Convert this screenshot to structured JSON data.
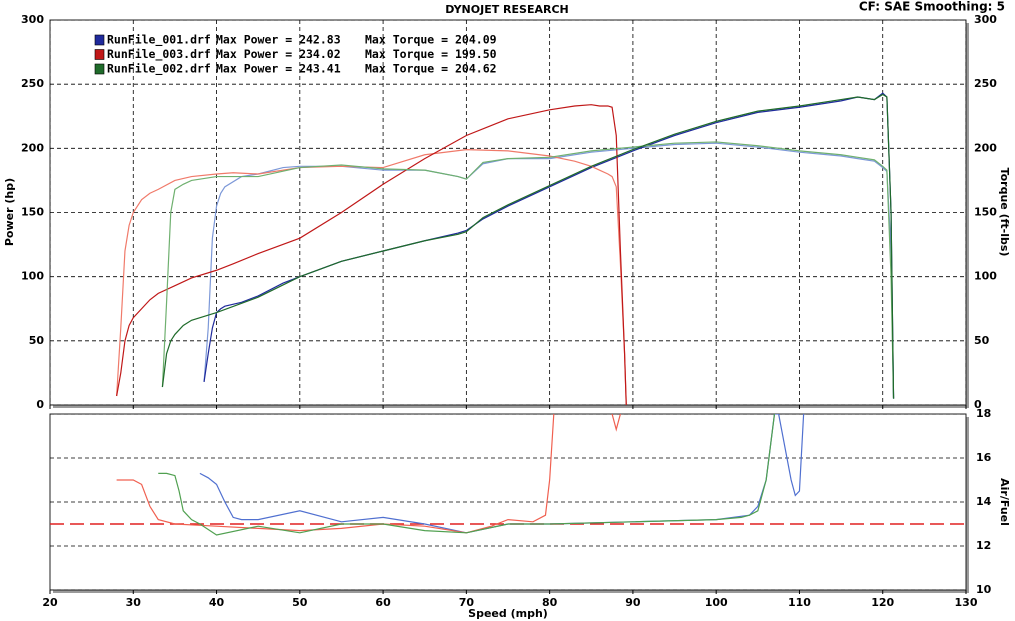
{
  "chart_data": [
    {
      "type": "line",
      "title": "DYNOJET RESEARCH",
      "subtitle": "CF: SAE  Smoothing: 5",
      "ylabel": "Power (hp)",
      "y2label": "Torque (ft-lbs)",
      "xlim": [
        20,
        130
      ],
      "xticks": [
        20,
        30,
        40,
        50,
        60,
        70,
        80,
        90,
        100,
        110,
        120,
        130
      ],
      "ylim": [
        0,
        300
      ],
      "yticks": [
        0,
        50,
        100,
        150,
        200,
        250,
        300
      ],
      "y2lim": [
        0,
        300
      ],
      "y2ticks": [
        0,
        50,
        100,
        150,
        200,
        250,
        300
      ],
      "grid": true,
      "xgrid": true,
      "series": [
        {
          "name": "RunFile_001.drf",
          "max_power": "Max Power = 242.83",
          "max_torque": "Max Torque = 204.09",
          "color": "#1f2a9c",
          "torque_color": "#7c98d8",
          "x": [
            38.5,
            39,
            39.5,
            40,
            40.5,
            41,
            43,
            45,
            48,
            50,
            55,
            60,
            65,
            69,
            70,
            72,
            75,
            80,
            85,
            90,
            95,
            100,
            105,
            110,
            115,
            117,
            119,
            120,
            120.5,
            121,
            121.3
          ],
          "values": [
            18,
            40,
            60,
            72,
            75,
            77,
            80,
            85,
            95,
            100,
            112,
            120,
            128,
            134,
            136,
            145,
            155,
            170,
            185,
            198,
            210,
            220,
            228,
            232,
            237,
            240,
            238,
            243,
            240,
            150,
            5
          ],
          "torque": [
            18,
            60,
            130,
            155,
            165,
            170,
            178,
            180,
            185,
            186,
            186,
            183,
            183,
            178,
            176,
            188,
            192,
            192,
            197,
            200,
            203,
            204,
            201,
            197,
            194,
            192,
            190,
            185,
            182,
            120,
            5
          ]
        },
        {
          "name": "RunFile_003.drf",
          "max_power": "Max Power = 234.02",
          "max_torque": "Max Torque = 199.50",
          "color": "#c01818",
          "torque_color": "#f07a6a",
          "x": [
            28,
            28.5,
            29,
            29.5,
            30,
            31,
            32,
            33,
            35,
            37,
            40,
            42,
            45,
            50,
            55,
            60,
            65,
            70,
            75,
            80,
            83,
            85,
            86,
            87,
            87.5,
            88,
            88.5,
            89,
            89.2
          ],
          "values": [
            7,
            25,
            50,
            62,
            68,
            75,
            82,
            87,
            93,
            99,
            105,
            110,
            118,
            130,
            150,
            172,
            192,
            210,
            223,
            230,
            233,
            234,
            233,
            233,
            232,
            210,
            120,
            40,
            0
          ],
          "torque": [
            7,
            60,
            120,
            140,
            150,
            160,
            165,
            168,
            175,
            178,
            180,
            181,
            180,
            185,
            186,
            185,
            195,
            199,
            198,
            194,
            190,
            186,
            183,
            180,
            178,
            170,
            110,
            40,
            0
          ]
        },
        {
          "name": "RunFile_002.drf",
          "max_power": "Max Power = 243.41",
          "max_torque": "Max Torque = 204.62",
          "color": "#1f6b2a",
          "torque_color": "#6fb06f",
          "x": [
            33.5,
            34,
            34.5,
            35,
            36,
            37,
            40,
            45,
            50,
            55,
            60,
            65,
            69,
            70,
            72,
            75,
            80,
            85,
            90,
            95,
            100,
            105,
            110,
            115,
            117,
            119,
            120,
            120.5,
            121,
            121.3
          ],
          "values": [
            14,
            40,
            50,
            55,
            62,
            66,
            72,
            84,
            100,
            112,
            120,
            128,
            133,
            135,
            146,
            156,
            171,
            186,
            199,
            211,
            221,
            229,
            233,
            238,
            240,
            238,
            242,
            240,
            150,
            5
          ],
          "torque": [
            14,
            80,
            150,
            168,
            172,
            175,
            178,
            178,
            185,
            187,
            184,
            183,
            178,
            176,
            189,
            192,
            193,
            198,
            201,
            204,
            205,
            202,
            198,
            195,
            193,
            191,
            186,
            183,
            100,
            5
          ]
        }
      ]
    },
    {
      "type": "line",
      "xlabel": "Speed (mph)",
      "y2label": "Air/Fuel",
      "xlim": [
        20,
        130
      ],
      "xticks": [
        20,
        30,
        40,
        50,
        60,
        70,
        80,
        90,
        100,
        110,
        120,
        130
      ],
      "ylim": [
        10,
        18
      ],
      "yticks": [
        10,
        12,
        14,
        16,
        18
      ],
      "grid": true,
      "xgrid": false,
      "reference_line": {
        "value": 13,
        "color": "#e02020"
      },
      "series": [
        {
          "color": "#5070d0",
          "x": [
            38,
            39,
            40,
            41,
            42,
            43,
            45,
            50,
            55,
            60,
            65,
            70,
            75,
            80,
            90,
            100,
            104,
            105,
            106,
            107,
            107.5,
            108,
            108.5,
            109,
            109.5,
            110,
            110.5
          ],
          "values": [
            15.3,
            15.1,
            14.8,
            14,
            13.3,
            13.2,
            13.2,
            13.6,
            13.1,
            13.3,
            13,
            12.6,
            13,
            13,
            13.1,
            13.2,
            13.4,
            13.8,
            15,
            18,
            18,
            17,
            16,
            15,
            14.3,
            14.5,
            18
          ]
        },
        {
          "color": "#f06050",
          "x": [
            28,
            30,
            31,
            32,
            33,
            35,
            40,
            45,
            50,
            55,
            60,
            65,
            70,
            73,
            75,
            78,
            79.5,
            80,
            80.5,
            81,
            87.5,
            88,
            88.5
          ],
          "values": [
            15,
            15,
            14.8,
            13.8,
            13.2,
            13,
            12.9,
            12.8,
            12.7,
            12.8,
            13,
            12.9,
            12.6,
            12.9,
            13.2,
            13.1,
            13.4,
            15,
            18,
            null,
            18,
            17.3,
            18
          ]
        },
        {
          "color": "#50a050",
          "x": [
            33,
            34,
            35,
            35.5,
            36,
            37,
            38,
            40,
            45,
            50,
            55,
            60,
            65,
            70,
            75,
            80,
            90,
            100,
            103,
            104,
            105,
            106,
            107
          ],
          "values": [
            15.3,
            15.3,
            15.2,
            14.5,
            13.6,
            13.2,
            13,
            12.5,
            12.9,
            12.6,
            13,
            13,
            12.7,
            12.6,
            13,
            13,
            13.1,
            13.2,
            13.3,
            13.4,
            13.6,
            15,
            18
          ]
        }
      ]
    }
  ]
}
